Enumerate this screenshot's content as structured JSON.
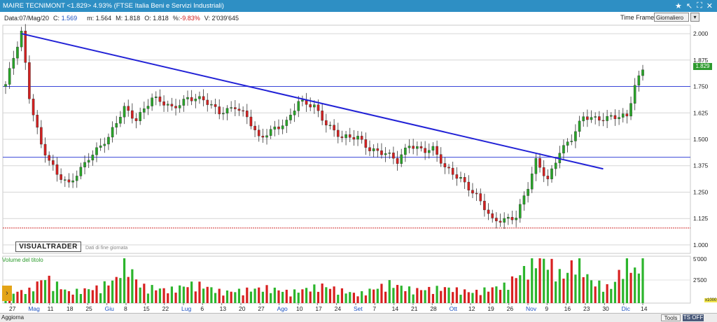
{
  "window": {
    "title": "MAIRE TECNIMONT <1.829> 4.93%  (FTSE Italia Beni e Servizi Industriali)",
    "controls": [
      "★",
      "↖",
      "⛶",
      "✕"
    ]
  },
  "info": {
    "date_label": "Data:",
    "date_value": "07/Mag/20",
    "close_label": "C:",
    "close_value": "1.569",
    "min_label": "m:",
    "min_value": "1.564",
    "max_label": "M:",
    "max_value": "1.818",
    "open_label": "O:",
    "open_value": "1.818",
    "pct_label": "%:",
    "pct_value": "-9.83%",
    "vol_label": "V:",
    "vol_value": "2'039'645",
    "timeframe_label": "Time Frame",
    "timeframe_value": "Giornaliero",
    "timeframe_btn": "▾"
  },
  "chart_data": {
    "type": "candlestick",
    "y_ticks": [
      "2.000",
      "1.875",
      "1.750",
      "1.625",
      "1.500",
      "1.375",
      "1.250",
      "1.125",
      "1.000"
    ],
    "ylim": [
      0.96,
      2.04
    ],
    "x_ticks": [
      "27",
      "Mag",
      "11",
      "18",
      "25",
      "Giu",
      "8",
      "15",
      "22",
      "Lug",
      "6",
      "13",
      "20",
      "27",
      "Ago",
      "10",
      "17",
      "24",
      "Set",
      "7",
      "14",
      "21",
      "28",
      "Ott",
      "12",
      "19",
      "26",
      "Nov",
      "9",
      "16",
      "23",
      "30",
      "Dic",
      "14"
    ],
    "horizontal_lines": [
      {
        "value": 1.75,
        "color": "#3a46d8"
      },
      {
        "value": 1.415,
        "color": "#3a46d8"
      },
      {
        "value": 1.08,
        "color": "#d23030"
      }
    ],
    "trendline": {
      "from_index": 4,
      "from_value": 2.0,
      "to_index": 151,
      "to_value": 1.36,
      "color": "#2222d6"
    },
    "last_price": "1.829",
    "volume_ticks": [
      "5'000",
      "2'500"
    ],
    "volume_units": "x1000",
    "series_anchors": [
      [
        0,
        1.76
      ],
      [
        4,
        2.0
      ],
      [
        6,
        1.7
      ],
      [
        9,
        1.48
      ],
      [
        13,
        1.33
      ],
      [
        16,
        1.28
      ],
      [
        21,
        1.42
      ],
      [
        26,
        1.5
      ],
      [
        30,
        1.65
      ],
      [
        33,
        1.6
      ],
      [
        37,
        1.69
      ],
      [
        42,
        1.65
      ],
      [
        46,
        1.7
      ],
      [
        50,
        1.68
      ],
      [
        54,
        1.63
      ],
      [
        58,
        1.66
      ],
      [
        61,
        1.6
      ],
      [
        64,
        1.5
      ],
      [
        68,
        1.56
      ],
      [
        71,
        1.58
      ],
      [
        74,
        1.67
      ],
      [
        78,
        1.66
      ],
      [
        81,
        1.58
      ],
      [
        85,
        1.5
      ],
      [
        89,
        1.51
      ],
      [
        92,
        1.46
      ],
      [
        96,
        1.43
      ],
      [
        99,
        1.39
      ],
      [
        102,
        1.48
      ],
      [
        106,
        1.45
      ],
      [
        108,
        1.45
      ],
      [
        111,
        1.36
      ],
      [
        115,
        1.32
      ],
      [
        119,
        1.23
      ],
      [
        123,
        1.11
      ],
      [
        125,
        1.12
      ],
      [
        129,
        1.14
      ],
      [
        132,
        1.27
      ],
      [
        134,
        1.39
      ],
      [
        137,
        1.31
      ],
      [
        140,
        1.45
      ],
      [
        143,
        1.5
      ],
      [
        146,
        1.6
      ],
      [
        149,
        1.6
      ],
      [
        153,
        1.61
      ],
      [
        157,
        1.6
      ],
      [
        159,
        1.75
      ],
      [
        161,
        1.829
      ]
    ],
    "volume_anchors": [
      [
        0,
        22
      ],
      [
        6,
        30
      ],
      [
        10,
        60
      ],
      [
        16,
        25
      ],
      [
        23,
        35
      ],
      [
        28,
        55
      ],
      [
        30,
        100
      ],
      [
        34,
        40
      ],
      [
        41,
        30
      ],
      [
        48,
        45
      ],
      [
        55,
        25
      ],
      [
        66,
        35
      ],
      [
        72,
        25
      ],
      [
        80,
        40
      ],
      [
        89,
        20
      ],
      [
        97,
        45
      ],
      [
        103,
        30
      ],
      [
        111,
        35
      ],
      [
        118,
        25
      ],
      [
        126,
        40
      ],
      [
        131,
        75
      ],
      [
        134,
        100
      ],
      [
        137,
        95
      ],
      [
        141,
        60
      ],
      [
        144,
        100
      ],
      [
        148,
        50
      ],
      [
        153,
        35
      ],
      [
        157,
        100
      ],
      [
        160,
        65
      ],
      [
        161,
        100
      ]
    ],
    "volume_direction": [
      "g",
      "r",
      "g",
      "r",
      "r",
      "g",
      "r",
      "g",
      "r",
      "r",
      "g",
      "r",
      "g",
      "g",
      "r",
      "g",
      "r",
      "r",
      "g",
      "g",
      "r",
      "g",
      "r",
      "r",
      "g",
      "g",
      "r",
      "g",
      "r",
      "g",
      "g",
      "r",
      "g",
      "r",
      "g",
      "r",
      "g",
      "g",
      "r",
      "g",
      "r",
      "r",
      "g",
      "r",
      "g",
      "g",
      "r",
      "g",
      "r",
      "r",
      "g",
      "r",
      "g",
      "g",
      "r",
      "r",
      "g",
      "r",
      "g",
      "g",
      "r",
      "r",
      "g",
      "g",
      "r",
      "g",
      "r",
      "g",
      "g",
      "r",
      "g",
      "r",
      "r",
      "g",
      "g",
      "r",
      "g",
      "r",
      "g",
      "r",
      "r",
      "g",
      "r",
      "r",
      "g",
      "r",
      "g",
      "g",
      "r",
      "r",
      "g",
      "r",
      "g",
      "r",
      "g",
      "r",
      "r",
      "g",
      "g",
      "r",
      "g",
      "r",
      "g",
      "g",
      "r",
      "r",
      "g",
      "r",
      "r",
      "g",
      "r",
      "r",
      "g",
      "r",
      "r",
      "g",
      "r",
      "r",
      "g",
      "r",
      "r",
      "g",
      "r",
      "r",
      "g",
      "r",
      "g",
      "g",
      "r",
      "r",
      "g",
      "g",
      "r",
      "g",
      "g",
      "r",
      "g",
      "g",
      "r",
      "g",
      "g",
      "r",
      "g",
      "r",
      "g",
      "g",
      "r",
      "g",
      "g",
      "r",
      "g",
      "g",
      "r",
      "g",
      "g",
      "r",
      "g",
      "g",
      "r",
      "g",
      "g",
      "g"
    ]
  },
  "branding": {
    "logo": "VISUALTRADER",
    "subtitle": "Dati di fine giornata"
  },
  "volume_panel": {
    "label": "Volume del titolo"
  },
  "statusbar": {
    "refresh": "Aggiorna",
    "tools": "Tools",
    "ts_off": "TS OFF"
  }
}
